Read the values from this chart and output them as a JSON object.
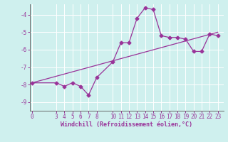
{
  "x_data": [
    0,
    3,
    4,
    5,
    6,
    7,
    8,
    10,
    11,
    12,
    13,
    14,
    15,
    16,
    17,
    18,
    19,
    20,
    21,
    22,
    23
  ],
  "y_data": [
    -7.9,
    -7.9,
    -8.1,
    -7.9,
    -8.1,
    -8.6,
    -7.6,
    -6.7,
    -5.6,
    -5.6,
    -4.2,
    -3.6,
    -3.7,
    -5.2,
    -5.3,
    -5.3,
    -5.4,
    -6.1,
    -6.1,
    -5.1,
    -5.2
  ],
  "trend_x": [
    0,
    23
  ],
  "trend_y": [
    -7.9,
    -5.0
  ],
  "line_color": "#993399",
  "trend_color": "#993399",
  "marker": "D",
  "marker_size": 2.5,
  "background_color": "#cff0ee",
  "grid_color": "#ffffff",
  "xlabel": "Windchill (Refroidissement éolien,°C)",
  "xlabel_color": "#993399",
  "tick_color": "#993399",
  "spine_color": "#666666",
  "ylim": [
    -9.5,
    -3.4
  ],
  "yticks": [
    -9,
    -8,
    -7,
    -6,
    -5,
    -4
  ],
  "xticks": [
    0,
    3,
    4,
    5,
    6,
    7,
    8,
    10,
    11,
    12,
    13,
    14,
    15,
    16,
    17,
    18,
    19,
    20,
    21,
    22,
    23
  ],
  "xlim": [
    -0.3,
    23.7
  ]
}
